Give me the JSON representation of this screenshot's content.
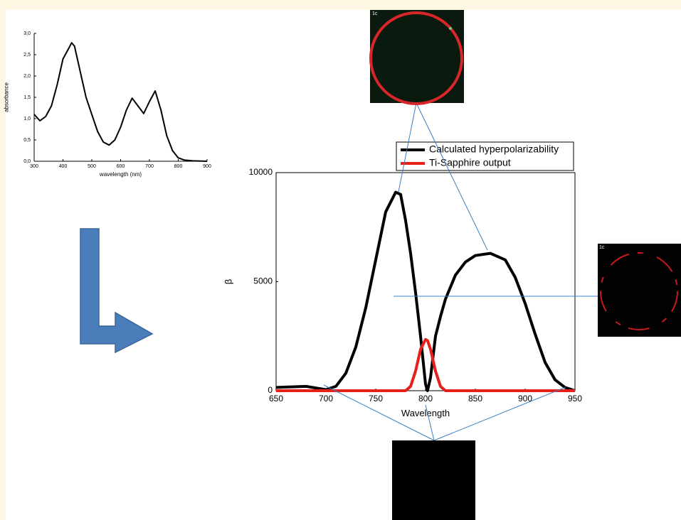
{
  "chart_data": [
    {
      "type": "line",
      "xlabel": "wavelength (nm)",
      "ylabel": "absorbance",
      "color": "#000000",
      "x": [
        300,
        320,
        340,
        360,
        380,
        400,
        420,
        430,
        440,
        460,
        480,
        500,
        520,
        540,
        560,
        580,
        600,
        620,
        640,
        660,
        680,
        700,
        720,
        740,
        760,
        780,
        800,
        820,
        850,
        900
      ],
      "values": [
        1.1,
        0.95,
        1.05,
        1.3,
        1.8,
        2.4,
        2.65,
        2.78,
        2.7,
        2.1,
        1.5,
        1.1,
        0.7,
        0.45,
        0.38,
        0.5,
        0.8,
        1.2,
        1.48,
        1.3,
        1.12,
        1.4,
        1.65,
        1.2,
        0.6,
        0.25,
        0.08,
        0.03,
        0.01,
        0
      ],
      "xlim": [
        300,
        900
      ],
      "xticks": [
        300,
        400,
        500,
        600,
        700,
        800,
        900
      ],
      "ylim": [
        0,
        3
      ],
      "yticks": [
        {
          "value": 0,
          "label": "0,0"
        },
        {
          "value": 0.5,
          "label": "0,5"
        },
        {
          "value": 1,
          "label": "1,0"
        },
        {
          "value": 1.5,
          "label": "1,5"
        },
        {
          "value": 2,
          "label": "2,0"
        },
        {
          "value": 2.5,
          "label": "2,5"
        },
        {
          "value": 3,
          "label": "3,0"
        }
      ]
    },
    {
      "type": "line",
      "xlabel": "Wavelength",
      "ylabel": "β",
      "x": [
        650,
        680,
        700,
        710,
        720,
        730,
        740,
        750,
        760,
        770,
        775,
        780,
        785,
        790,
        795,
        800,
        802,
        805,
        810,
        815,
        820,
        830,
        840,
        850,
        865,
        880,
        890,
        900,
        910,
        920,
        930,
        940,
        950
      ],
      "series": [
        {
          "name": "Calculated hyperpolarizability",
          "color": "#000000",
          "values": [
            150,
            200,
            50,
            200,
            800,
            2000,
            3800,
            6000,
            8200,
            9100,
            9000,
            7800,
            6300,
            4500,
            2500,
            300,
            0,
            600,
            2500,
            3400,
            4200,
            5300,
            5900,
            6200,
            6300,
            6000,
            5200,
            4000,
            2600,
            1300,
            500,
            150,
            0
          ]
        },
        {
          "name": "Ti-Sapphire output",
          "color": "#e8201c",
          "values": [
            0,
            0,
            0,
            0,
            0,
            0,
            0,
            0,
            0,
            0,
            0,
            0,
            200,
            900,
            1900,
            2350,
            2300,
            1900,
            900,
            200,
            0,
            0,
            0,
            0,
            0,
            0,
            0,
            0,
            0,
            0,
            0,
            0,
            0
          ]
        }
      ],
      "xlim": [
        650,
        950
      ],
      "xticks": [
        650,
        700,
        750,
        800,
        850,
        900,
        950
      ],
      "ylim": [
        0,
        10000
      ],
      "yticks": [
        0,
        5000,
        10000
      ]
    }
  ],
  "images": [
    {
      "label": "1c"
    },
    {
      "label": "1c"
    }
  ]
}
